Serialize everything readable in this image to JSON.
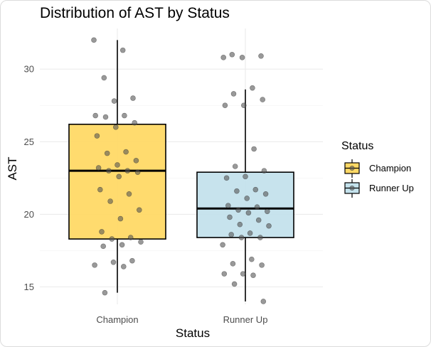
{
  "chart_data": {
    "type": "boxplot",
    "title": "Distribution of AST by Status",
    "xlabel": "Status",
    "ylabel": "AST",
    "categories": [
      "Champion",
      "Runner Up"
    ],
    "ylim": [
      13.8,
      32.8
    ],
    "yticks": [
      15,
      20,
      25,
      30
    ],
    "grid": true,
    "legend": {
      "title": "Status",
      "position": "right",
      "entries": [
        "Champion",
        "Runner Up"
      ]
    },
    "colors": {
      "Champion": "#FFD966",
      "Runner Up": "#C4E2EC",
      "points": "#555555",
      "box_outline": "#000000"
    },
    "boxes": [
      {
        "category": "Champion",
        "min": 14.6,
        "q1": 18.3,
        "median": 23.0,
        "q3": 26.2,
        "max": 32.0
      },
      {
        "category": "Runner Up",
        "min": 14.0,
        "q1": 18.4,
        "median": 20.4,
        "q3": 22.9,
        "max": 28.6
      }
    ],
    "points": [
      {
        "category": "Champion",
        "values": [
          32.0,
          31.3,
          29.4,
          28.0,
          27.8,
          26.8,
          26.8,
          26.7,
          26.3,
          26.0,
          25.4,
          24.3,
          24.2,
          23.7,
          23.4,
          23.2,
          23.0,
          23.0,
          22.9,
          22.6,
          21.7,
          21.4,
          20.9,
          20.3,
          19.7,
          18.8,
          18.4,
          18.3,
          18.1,
          17.9,
          17.8,
          16.8,
          16.7,
          16.5,
          16.4,
          14.6
        ]
      },
      {
        "category": "Runner Up",
        "values": [
          31.0,
          30.9,
          30.8,
          30.8,
          28.7,
          28.3,
          27.9,
          27.5,
          27.5,
          24.5,
          23.3,
          23.0,
          22.6,
          22.5,
          21.7,
          21.6,
          21.4,
          21.1,
          20.6,
          20.5,
          20.3,
          20.2,
          20.1,
          19.8,
          19.6,
          19.3,
          19.2,
          18.7,
          18.6,
          18.4,
          18.4,
          17.9,
          16.9,
          16.6,
          16.5,
          15.9,
          15.9,
          15.8,
          15.2,
          14.0
        ]
      }
    ]
  }
}
